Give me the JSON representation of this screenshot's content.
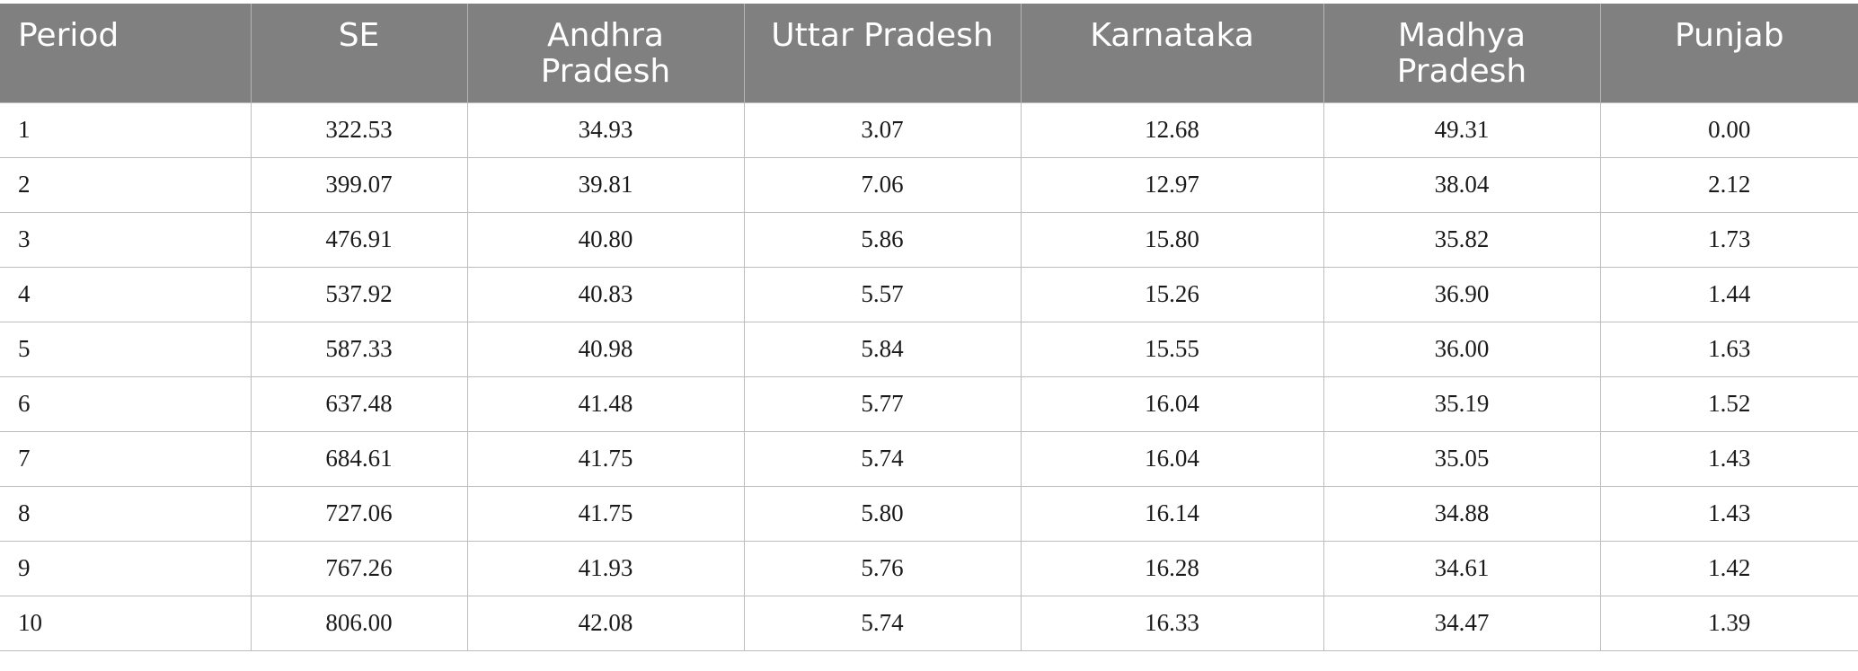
{
  "table": {
    "headers": [
      "Period",
      "SE",
      "Andhra Pradesh",
      "Uttar Pradesh",
      "Karnataka",
      "Madhya Pradesh",
      "Punjab"
    ],
    "rows": [
      [
        "1",
        "322.53",
        "34.93",
        "3.07",
        "12.68",
        "49.31",
        "0.00"
      ],
      [
        "2",
        "399.07",
        "39.81",
        "7.06",
        "12.97",
        "38.04",
        "2.12"
      ],
      [
        "3",
        "476.91",
        "40.80",
        "5.86",
        "15.80",
        "35.82",
        "1.73"
      ],
      [
        "4",
        "537.92",
        "40.83",
        "5.57",
        "15.26",
        "36.90",
        "1.44"
      ],
      [
        "5",
        "587.33",
        "40.98",
        "5.84",
        "15.55",
        "36.00",
        "1.63"
      ],
      [
        "6",
        "637.48",
        "41.48",
        "5.77",
        "16.04",
        "35.19",
        "1.52"
      ],
      [
        "7",
        "684.61",
        "41.75",
        "5.74",
        "16.04",
        "35.05",
        "1.43"
      ],
      [
        "8",
        "727.06",
        "41.75",
        "5.80",
        "16.14",
        "34.88",
        "1.43"
      ],
      [
        "9",
        "767.26",
        "41.93",
        "5.76",
        "16.28",
        "34.61",
        "1.42"
      ],
      [
        "10",
        "806.00",
        "42.08",
        "5.74",
        "16.33",
        "34.47",
        "1.39"
      ]
    ]
  },
  "colors": {
    "header_bg": "#808080",
    "header_text": "#ffffff",
    "grid_line": "#bdbdbd"
  }
}
